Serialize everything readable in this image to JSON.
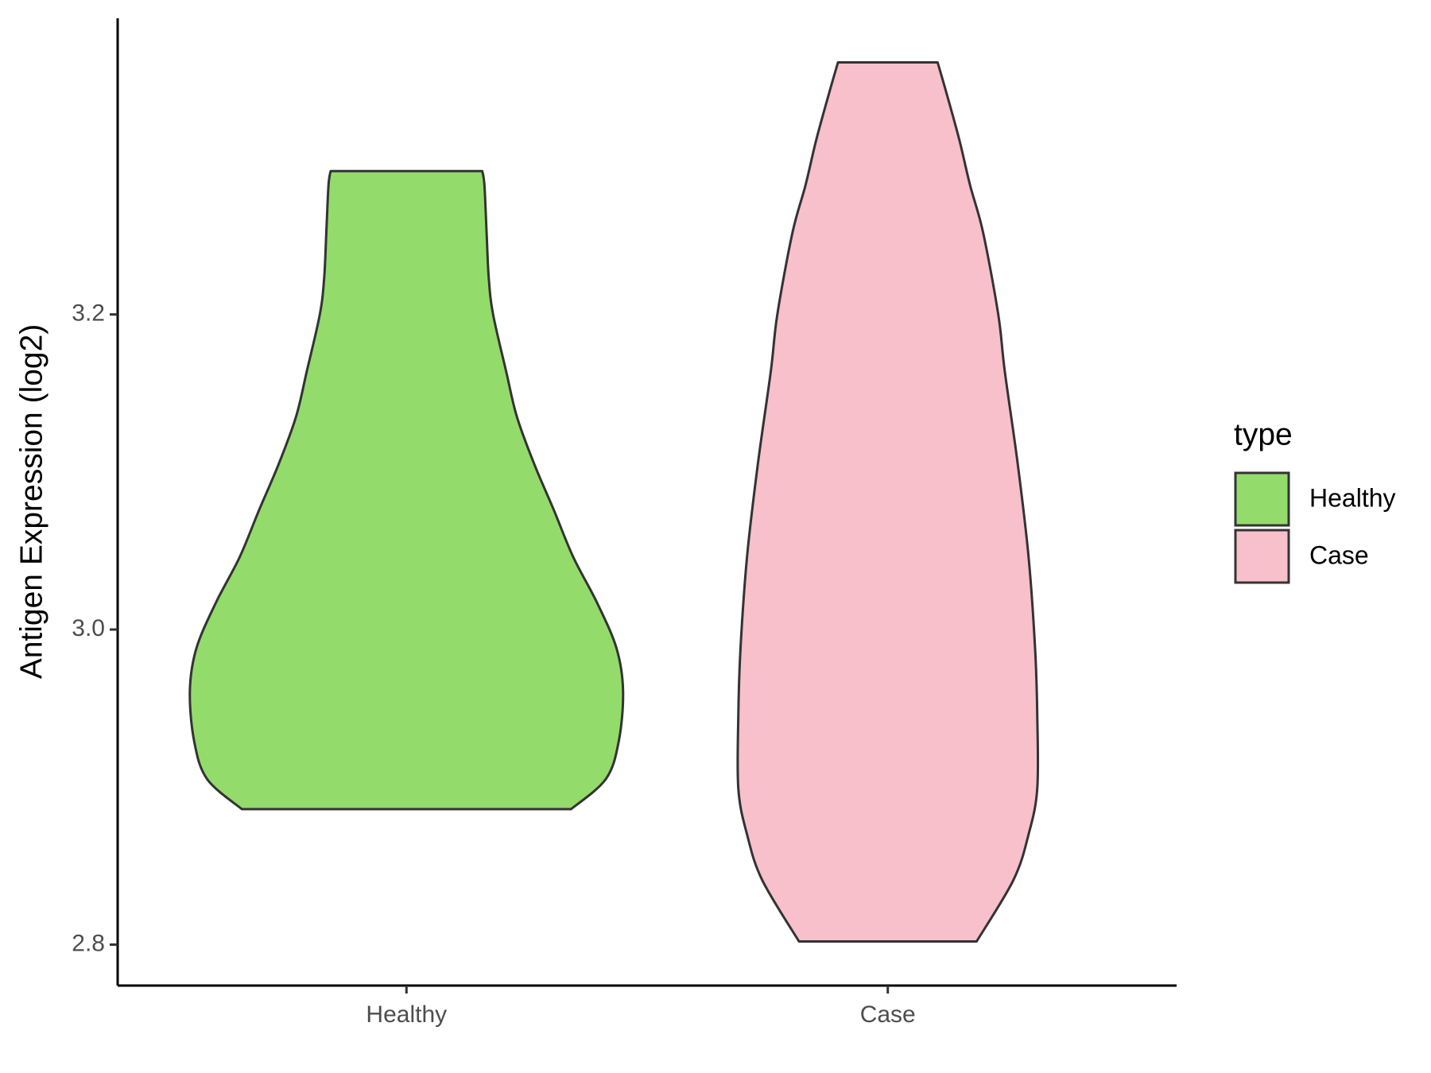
{
  "chart_data": {
    "type": "violin",
    "y_label": "Antigen Expression (log2)",
    "legend_title": "type",
    "categories": [
      "Healthy",
      "Case"
    ],
    "series": [
      {
        "name": "Healthy",
        "color": "#93dc6b",
        "y": [
          2.886,
          2.905,
          2.929,
          2.961,
          2.988,
          3.017,
          3.046,
          3.076,
          3.105,
          3.135,
          3.164,
          3.2,
          3.223,
          3.252,
          3.282,
          3.291
        ],
        "density": [
          0.76,
          0.92,
          0.98,
          1.0,
          0.97,
          0.88,
          0.77,
          0.68,
          0.59,
          0.51,
          0.46,
          0.4,
          0.38,
          0.37,
          0.36,
          0.35
        ]
      },
      {
        "name": "Case",
        "color": "#f7c0cb",
        "y": [
          2.802,
          2.841,
          2.87,
          2.899,
          2.946,
          2.988,
          3.046,
          3.105,
          3.164,
          3.2,
          3.252,
          3.282,
          3.311,
          3.341,
          3.36
        ],
        "density": [
          0.41,
          0.58,
          0.65,
          0.69,
          0.69,
          0.68,
          0.65,
          0.6,
          0.54,
          0.51,
          0.44,
          0.38,
          0.33,
          0.27,
          0.23
        ]
      }
    ],
    "ylim": [
      2.774,
      3.388
    ],
    "yticks": [
      2.8,
      {
        "value": 3.0,
        "label": "3.0"
      },
      3.2
    ]
  }
}
